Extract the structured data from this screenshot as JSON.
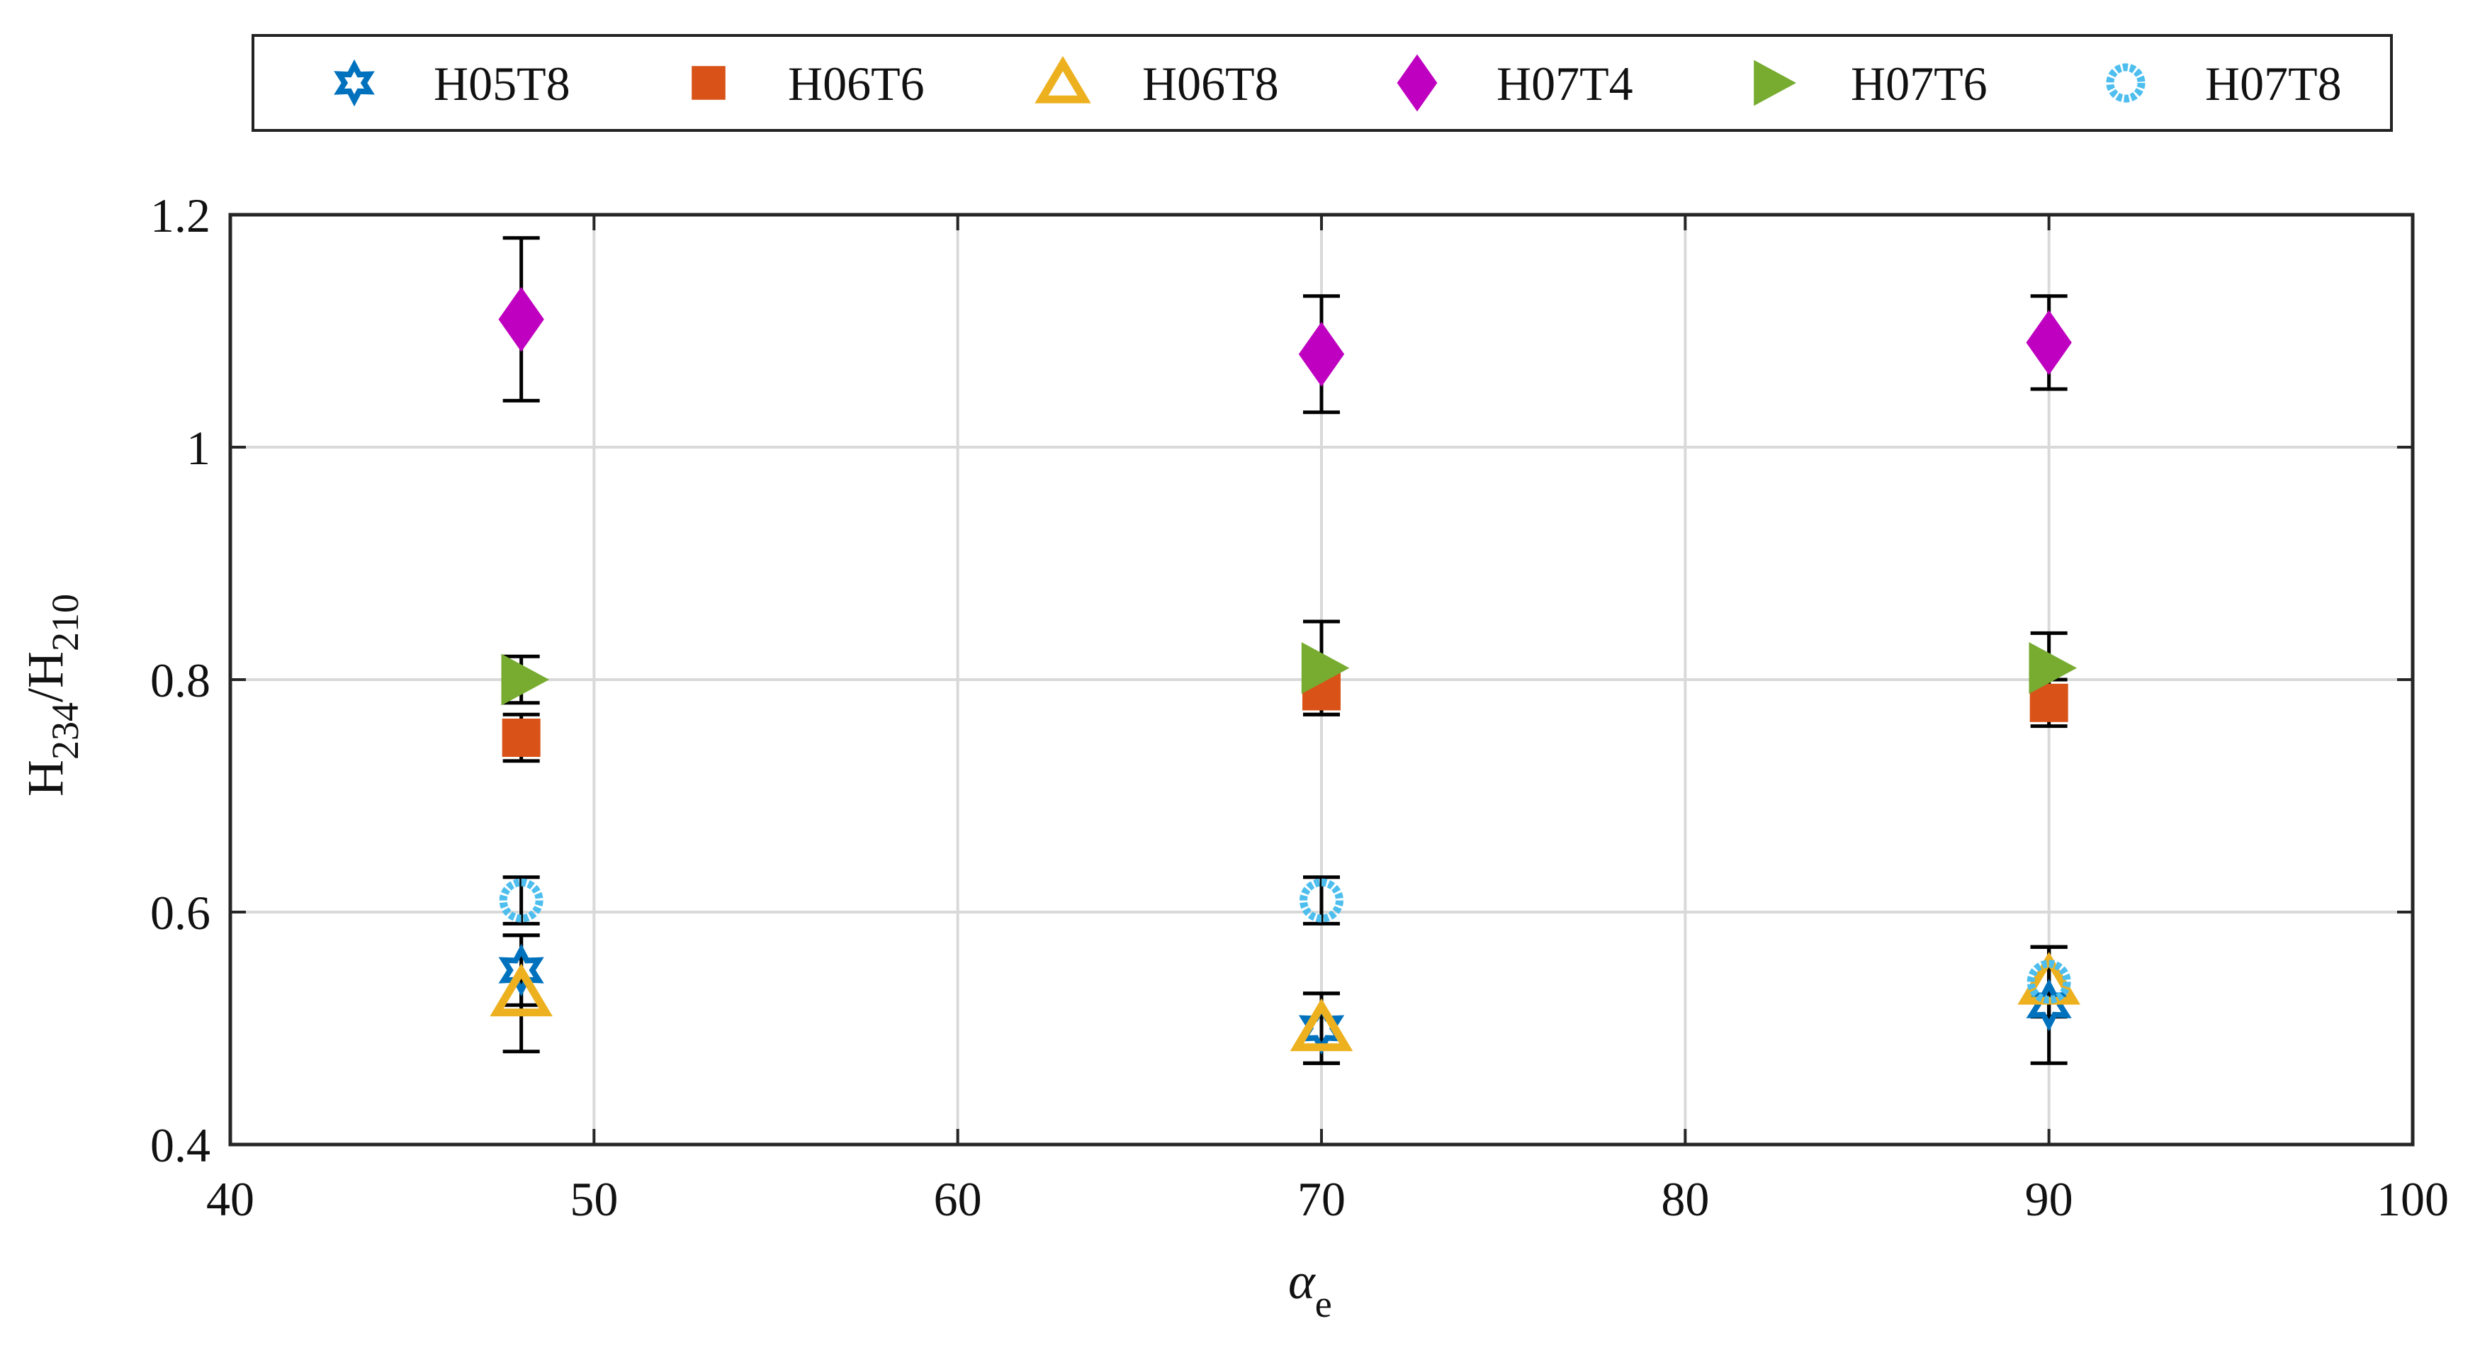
{
  "chart_data": {
    "type": "scatter",
    "title": "",
    "xlabel": {
      "main": "α",
      "sub": "e"
    },
    "ylabel": {
      "main": "H",
      "sub1": "234",
      "mid": "/H",
      "sub2": "210"
    },
    "xlim": [
      40,
      100
    ],
    "ylim": [
      0.4,
      1.2
    ],
    "xticks": [
      40,
      50,
      60,
      70,
      80,
      90,
      100
    ],
    "xtick_labels": [
      "40",
      "50",
      "60",
      "70",
      "80",
      "90",
      "100"
    ],
    "yticks": [
      0.4,
      0.6,
      0.8,
      1.0,
      1.2
    ],
    "ytick_labels": [
      "0.4",
      "0.6",
      "0.8",
      "1",
      "1.2"
    ],
    "grid": true,
    "legend_position": "top-outside",
    "error_bar_color": "#000000",
    "series": [
      {
        "name": "H05T8",
        "marker": "hexagram",
        "filled": false,
        "color": "#0072BD",
        "x": [
          48,
          70,
          90
        ],
        "y": [
          0.55,
          0.5,
          0.52
        ],
        "err": [
          0.03,
          0.03,
          0.05
        ]
      },
      {
        "name": "H06T6",
        "marker": "square",
        "filled": true,
        "color": "#D95319",
        "x": [
          48,
          70,
          90
        ],
        "y": [
          0.75,
          0.79,
          0.78
        ],
        "err": [
          0.02,
          0.02,
          0.02
        ]
      },
      {
        "name": "H06T8",
        "marker": "triangle-up",
        "filled": false,
        "color": "#EDB120",
        "x": [
          48,
          70,
          90
        ],
        "y": [
          0.53,
          0.5,
          0.54
        ],
        "err": [
          0.05,
          0.03,
          0.03
        ]
      },
      {
        "name": "H07T4",
        "marker": "diamond",
        "filled": true,
        "color": "#C000C0",
        "x": [
          48,
          70,
          90
        ],
        "y": [
          1.11,
          1.08,
          1.09
        ],
        "err": [
          0.07,
          0.05,
          0.04
        ]
      },
      {
        "name": "H07T6",
        "marker": "triangle-right",
        "filled": true,
        "color": "#77AC30",
        "x": [
          48,
          70,
          90
        ],
        "y": [
          0.8,
          0.81,
          0.81
        ],
        "err": [
          0.02,
          0.04,
          0.03
        ]
      },
      {
        "name": "H07T8",
        "marker": "circle",
        "filled": false,
        "color": "#4DBEEE",
        "x": [
          48,
          70,
          90
        ],
        "y": [
          0.61,
          0.61,
          0.54
        ],
        "err": [
          0.02,
          0.02,
          0.03
        ]
      }
    ]
  }
}
